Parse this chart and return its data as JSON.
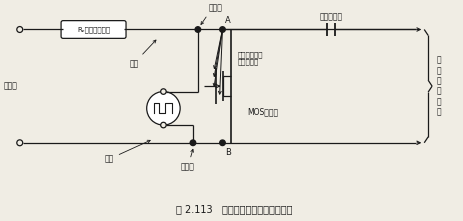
{
  "title": "图 2.113   构成斩波器电路的导线材料",
  "bg_color": "#f0ede4",
  "line_color": "#1a1a1a",
  "labels": {
    "Ra": "Rₑ（输入电阻）",
    "copper_top": "铜线",
    "solder_top": "锡焊点",
    "A": "A",
    "B": "B",
    "kovar": "镀金的科伐线\n（铁合金）",
    "MOS": "MOS晶体管",
    "input": "输入端",
    "coupling": "耦合电容器",
    "ac_amp": "接\n交\n流\n放\n大\n器",
    "copper_bot": "铜线",
    "solder_bot": "锡焊点"
  }
}
